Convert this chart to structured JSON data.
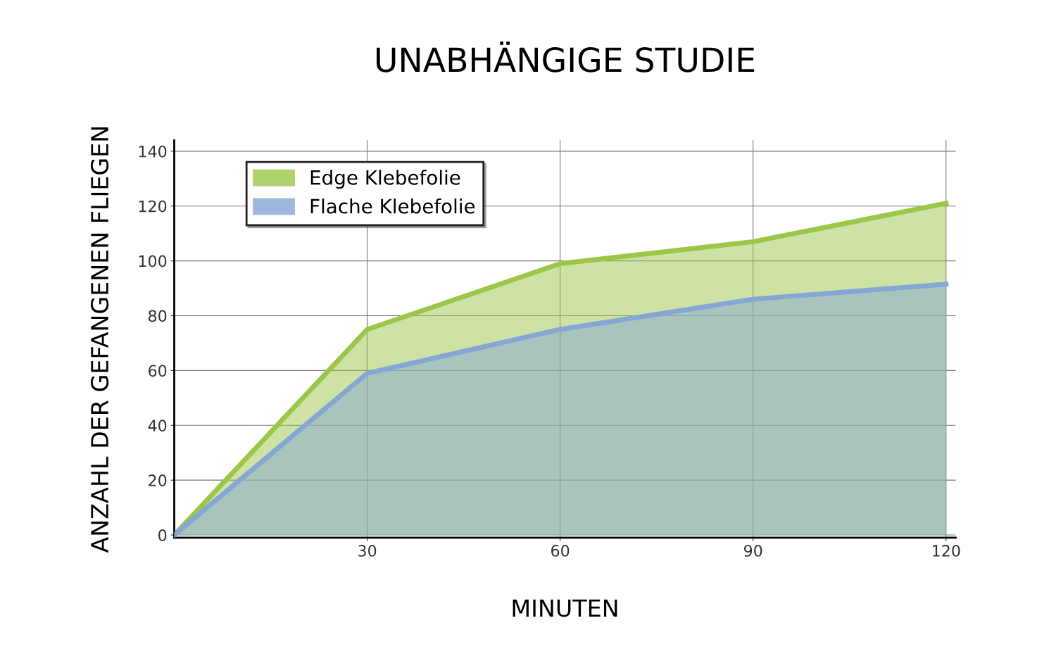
{
  "chart_data": {
    "type": "area",
    "title": "UNABHÄNGIGE STUDIE",
    "xlabel": "MINUTEN",
    "ylabel": "ANZAHL DER GEFANGENEN FLIEGEN",
    "x": [
      0,
      30,
      60,
      90,
      120
    ],
    "series": [
      {
        "name": "Edge Klebefolie",
        "color": "#9cc64a",
        "values": [
          0,
          75,
          99,
          107,
          121
        ]
      },
      {
        "name": "Flache Klebefolie",
        "color": "#86a6d4",
        "values": [
          0,
          59,
          75,
          86,
          91.5
        ]
      }
    ],
    "xlim": [
      0,
      121.5
    ],
    "xticks": [
      30,
      60,
      90,
      120
    ],
    "ylim": [
      -1,
      144
    ],
    "yticks": [
      0,
      20,
      40,
      60,
      80,
      100,
      120,
      140
    ],
    "grid": true,
    "legend": "top left"
  }
}
